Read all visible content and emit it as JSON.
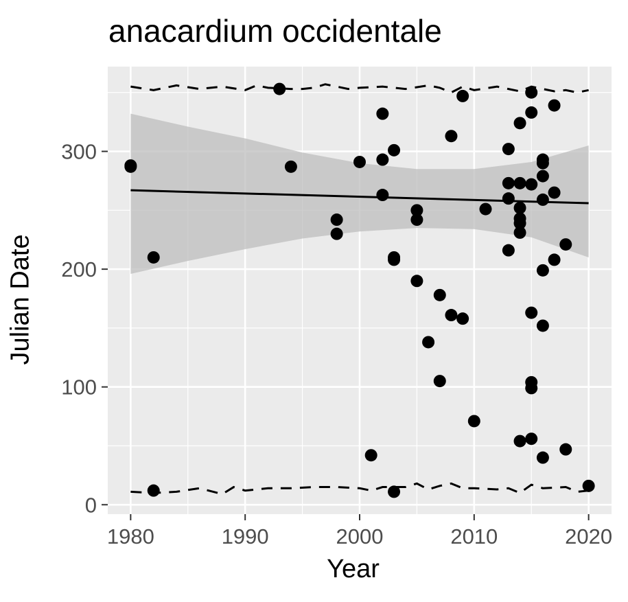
{
  "chart_data": {
    "type": "scatter",
    "title": "anacardium occidentale",
    "xlabel": "Year",
    "ylabel": "Julian Date",
    "xlim": [
      1978,
      2022
    ],
    "ylim": [
      -8,
      372
    ],
    "x_ticks": [
      1980,
      1990,
      2000,
      2010,
      2020
    ],
    "y_ticks": [
      0,
      100,
      200,
      300
    ],
    "grid": true,
    "legend": "none",
    "colors": {
      "panel": "#EBEBEB",
      "grid": "#FFFFFF",
      "points": "#000000",
      "ribbon": "#BDBDBD",
      "tick_label": "#4D4D4D"
    },
    "points": [
      {
        "x": 1980,
        "y": 287
      },
      {
        "x": 1980,
        "y": 288
      },
      {
        "x": 1982,
        "y": 210
      },
      {
        "x": 1982,
        "y": 12
      },
      {
        "x": 1993,
        "y": 353
      },
      {
        "x": 1994,
        "y": 287
      },
      {
        "x": 1998,
        "y": 242
      },
      {
        "x": 1998,
        "y": 230
      },
      {
        "x": 2000,
        "y": 291
      },
      {
        "x": 2001,
        "y": 42
      },
      {
        "x": 2002,
        "y": 332
      },
      {
        "x": 2002,
        "y": 293
      },
      {
        "x": 2002,
        "y": 263
      },
      {
        "x": 2003,
        "y": 301
      },
      {
        "x": 2003,
        "y": 210
      },
      {
        "x": 2003,
        "y": 208
      },
      {
        "x": 2003,
        "y": 11
      },
      {
        "x": 2005,
        "y": 250
      },
      {
        "x": 2005,
        "y": 242
      },
      {
        "x": 2005,
        "y": 190
      },
      {
        "x": 2006,
        "y": 138
      },
      {
        "x": 2007,
        "y": 178
      },
      {
        "x": 2007,
        "y": 105
      },
      {
        "x": 2008,
        "y": 313
      },
      {
        "x": 2008,
        "y": 161
      },
      {
        "x": 2009,
        "y": 347
      },
      {
        "x": 2009,
        "y": 158
      },
      {
        "x": 2010,
        "y": 71
      },
      {
        "x": 2011,
        "y": 251
      },
      {
        "x": 2013,
        "y": 302
      },
      {
        "x": 2013,
        "y": 273
      },
      {
        "x": 2013,
        "y": 260
      },
      {
        "x": 2013,
        "y": 216
      },
      {
        "x": 2014,
        "y": 324
      },
      {
        "x": 2014,
        "y": 273
      },
      {
        "x": 2014,
        "y": 252
      },
      {
        "x": 2014,
        "y": 243
      },
      {
        "x": 2014,
        "y": 239
      },
      {
        "x": 2014,
        "y": 231
      },
      {
        "x": 2014,
        "y": 54
      },
      {
        "x": 2015,
        "y": 350
      },
      {
        "x": 2015,
        "y": 333
      },
      {
        "x": 2015,
        "y": 272
      },
      {
        "x": 2015,
        "y": 163
      },
      {
        "x": 2015,
        "y": 104
      },
      {
        "x": 2015,
        "y": 99
      },
      {
        "x": 2015,
        "y": 56
      },
      {
        "x": 2016,
        "y": 293
      },
      {
        "x": 2016,
        "y": 290
      },
      {
        "x": 2016,
        "y": 279
      },
      {
        "x": 2016,
        "y": 259
      },
      {
        "x": 2016,
        "y": 199
      },
      {
        "x": 2016,
        "y": 152
      },
      {
        "x": 2016,
        "y": 40
      },
      {
        "x": 2017,
        "y": 339
      },
      {
        "x": 2017,
        "y": 265
      },
      {
        "x": 2017,
        "y": 208
      },
      {
        "x": 2018,
        "y": 221
      },
      {
        "x": 2018,
        "y": 47
      },
      {
        "x": 2020,
        "y": 16
      }
    ],
    "trend_line": {
      "x": [
        1980,
        2020
      ],
      "y": [
        267,
        256
      ]
    },
    "confidence_band": {
      "x": [
        1980,
        1985,
        1990,
        1995,
        2000,
        2005,
        2010,
        2015,
        2020
      ],
      "lower": [
        196,
        207,
        217,
        226,
        232,
        235,
        234,
        227,
        210
      ],
      "upper": [
        332,
        321,
        311,
        299,
        290,
        285,
        285,
        291,
        305
      ]
    },
    "upper_dashed": {
      "x": [
        1980,
        1982,
        1984,
        1986,
        1988,
        1990,
        1991,
        1992,
        1994,
        1995,
        1996,
        1997,
        1999,
        2000,
        2002,
        2004,
        2006,
        2007,
        2008,
        2009,
        2010,
        2012,
        2014,
        2015,
        2016,
        2017,
        2018,
        2019,
        2020
      ],
      "y": [
        355,
        352,
        356,
        353,
        355,
        352,
        356,
        354,
        353,
        353,
        354,
        357,
        353,
        354,
        355,
        353,
        356,
        354,
        350,
        355,
        352,
        355,
        351,
        355,
        353,
        351,
        352,
        350,
        352
      ]
    },
    "lower_dashed": {
      "x": [
        1980,
        1982,
        1984,
        1986,
        1988,
        1989,
        1990,
        1992,
        1994,
        1996,
        1998,
        2000,
        2001,
        2002,
        2004,
        2005,
        2006,
        2007,
        2008,
        2009,
        2010,
        2012,
        2013,
        2014,
        2015,
        2016,
        2018,
        2019,
        2020
      ],
      "y": [
        11,
        10,
        11,
        14,
        9,
        15,
        12,
        14,
        14,
        15,
        15,
        14,
        12,
        15,
        15,
        18,
        13,
        16,
        18,
        14,
        14,
        13,
        14,
        10,
        17,
        14,
        15,
        11,
        12
      ]
    }
  }
}
